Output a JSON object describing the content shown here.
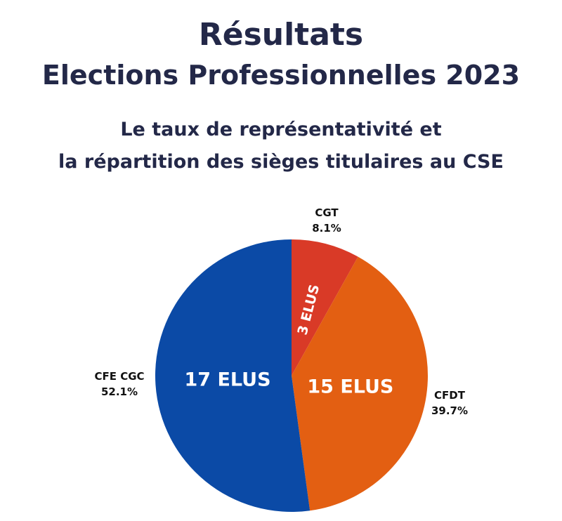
{
  "header": {
    "title_line_1": "Résultats",
    "title_line_2": "Elections Professionnelles 2023",
    "subtitle_line_1": "Le taux de représentativité et",
    "subtitle_line_2": "la répartition des sièges titulaires au CSE"
  },
  "chart_data": {
    "type": "pie",
    "title": "Résultats Elections Professionnelles 2023",
    "subtitle": "Le taux de représentativité et la répartition des sièges titulaires au CSE",
    "slices": [
      {
        "name": "CGT",
        "value": 8.1,
        "value_label": "8.1%",
        "seats_label": "3 ELUS",
        "color": "#d93a27"
      },
      {
        "name": "CFDT",
        "value": 39.7,
        "value_label": "39.7%",
        "seats_label": "15 ELUS",
        "color": "#e35f12"
      },
      {
        "name": "CFE CGC",
        "value": 52.1,
        "value_label": "52.1%",
        "seats_label": "17 ELUS",
        "color": "#0b4aa6"
      }
    ],
    "start": "top",
    "direction": "clockwise",
    "legend": "none"
  }
}
